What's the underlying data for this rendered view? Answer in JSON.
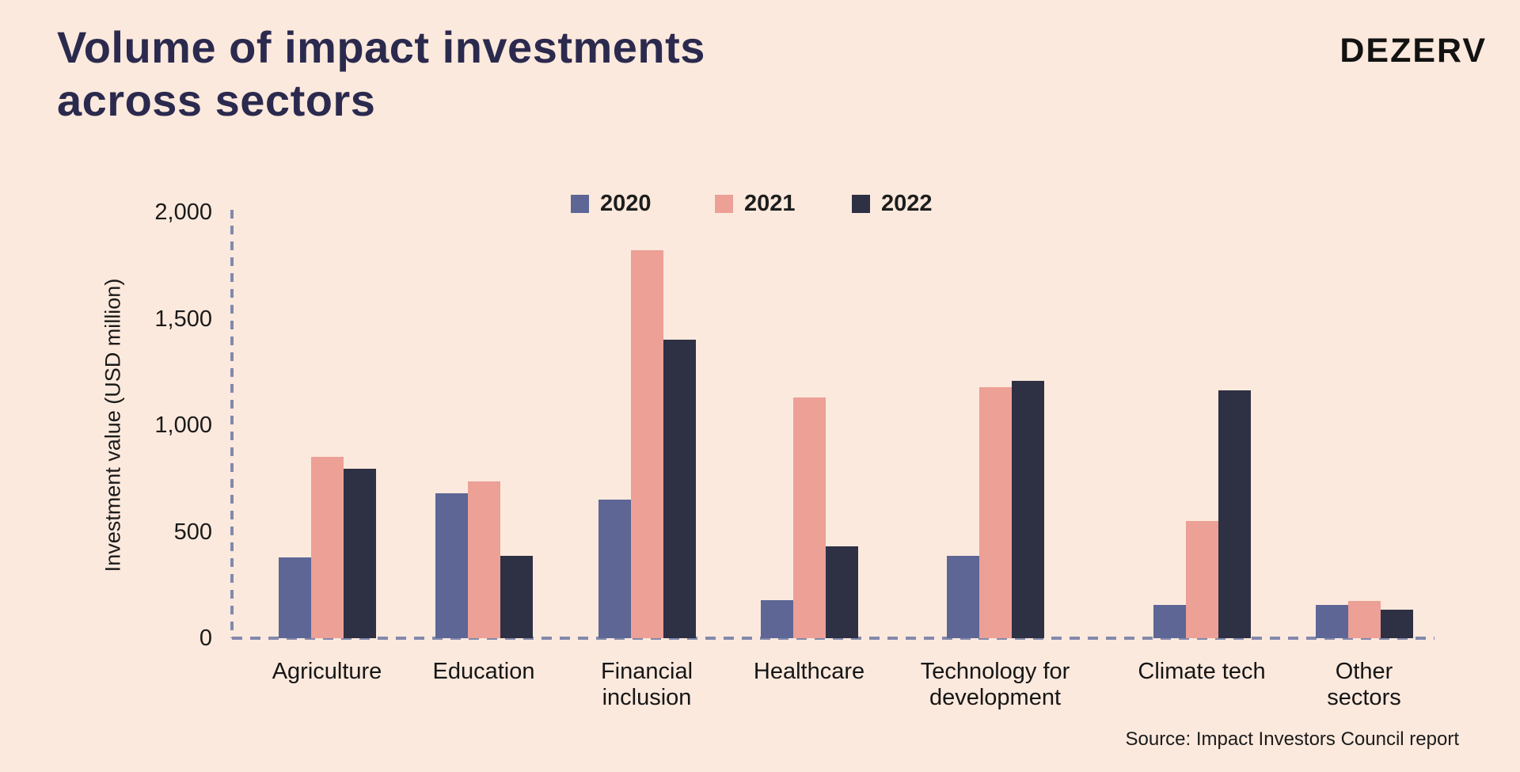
{
  "header": {
    "title_line1": "Volume of impact investments",
    "title_line2": "across sectors",
    "logo": "DEZERV"
  },
  "legend": [
    {
      "label": "2020",
      "color": "#5d6695"
    },
    {
      "label": "2021",
      "color": "#eca096"
    },
    {
      "label": "2022",
      "color": "#2e3044"
    }
  ],
  "y_axis": {
    "label": "Investment value (USD million)",
    "ticks": [
      {
        "label": "2,000",
        "value": 2000
      },
      {
        "label": "1,500",
        "value": 1500
      },
      {
        "label": "1,000",
        "value": 1000
      },
      {
        "label": "500",
        "value": 500
      },
      {
        "label": "0",
        "value": 0
      }
    ]
  },
  "chart_data": {
    "type": "bar",
    "title": "Volume of impact investments across sectors",
    "categories": [
      "Agriculture",
      "Education",
      "Financial inclusion",
      "Healthcare",
      "Technology for development",
      "Climate tech",
      "Other sectors"
    ],
    "category_lines": [
      [
        "Agriculture"
      ],
      [
        "Education"
      ],
      [
        "Financial",
        "inclusion"
      ],
      [
        "Healthcare"
      ],
      [
        "Technology for",
        "development"
      ],
      [
        "Climate tech"
      ],
      [
        "Other",
        "sectors"
      ]
    ],
    "series": [
      {
        "name": "2020",
        "color": "#5d6695",
        "values": [
          380,
          680,
          650,
          180,
          385,
          155,
          155
        ]
      },
      {
        "name": "2021",
        "color": "#eca096",
        "values": [
          850,
          735,
          1820,
          1130,
          1180,
          550,
          175
        ]
      },
      {
        "name": "2022",
        "color": "#2e3044",
        "values": [
          795,
          385,
          1400,
          430,
          1210,
          1165,
          135
        ]
      }
    ],
    "xlabel": "",
    "ylabel": "Investment value (USD million)",
    "ylim": [
      0,
      2000
    ],
    "legend_position": "top",
    "grid": false
  },
  "source": "Source: Impact Investors Council report",
  "colors": {
    "background": "#fce9dd",
    "title": "#2b2a4e",
    "text": "#1d1d1d",
    "axis_dash": "#8289ab",
    "logo": "#121212"
  }
}
